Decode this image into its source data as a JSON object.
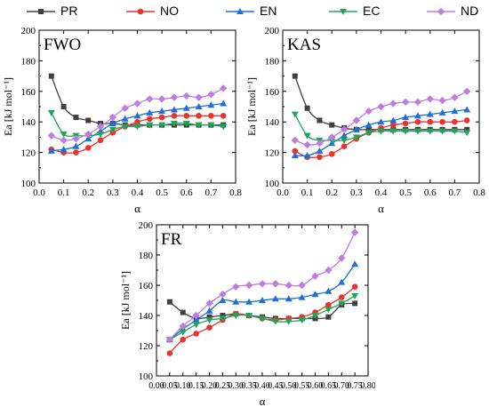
{
  "legend": [
    {
      "name": "PR",
      "color": "#404040",
      "marker": "square"
    },
    {
      "name": "NO",
      "color": "#e8332e",
      "marker": "circle"
    },
    {
      "name": "EN",
      "color": "#1f6fd6",
      "marker": "triangle-up"
    },
    {
      "name": "EC",
      "color": "#1ea55a",
      "marker": "triangle-down"
    },
    {
      "name": "ND",
      "color": "#c07ce0",
      "marker": "diamond"
    }
  ],
  "chart_data": [
    {
      "type": "line",
      "title": "FWO",
      "xlabel": "α",
      "ylabel": "Ea [kJ mol⁻¹]",
      "xlim": [
        0,
        0.8
      ],
      "ylim": [
        100,
        200
      ],
      "xticks": [
        "0.0",
        "0.1",
        "0.2",
        "0.3",
        "0.4",
        "0.5",
        "0.6",
        "0.7",
        "0.8"
      ],
      "yticks": [
        "100",
        "120",
        "140",
        "160",
        "180",
        "200"
      ],
      "grid": false,
      "x": [
        0.05,
        0.1,
        0.15,
        0.2,
        0.25,
        0.3,
        0.35,
        0.4,
        0.45,
        0.5,
        0.55,
        0.6,
        0.65,
        0.7,
        0.75
      ],
      "series": [
        {
          "name": "PR",
          "values": [
            170,
            150,
            143,
            141,
            139,
            139,
            138,
            138,
            138,
            138,
            138,
            138,
            138,
            138,
            138
          ]
        },
        {
          "name": "NO",
          "values": [
            122,
            120,
            120,
            123,
            128,
            133,
            137,
            140,
            142,
            143,
            144,
            144,
            144,
            144,
            144
          ]
        },
        {
          "name": "EN",
          "values": [
            121,
            122,
            124,
            129,
            134,
            139,
            142,
            144,
            146,
            147,
            148,
            149,
            150,
            151,
            152
          ]
        },
        {
          "name": "EC",
          "values": [
            146,
            132,
            131,
            131,
            132,
            135,
            137,
            137,
            138,
            138,
            139,
            139,
            138,
            138,
            137
          ]
        },
        {
          "name": "ND",
          "values": [
            131,
            128,
            129,
            132,
            137,
            143,
            149,
            152,
            155,
            155,
            156,
            157,
            156,
            158,
            162
          ]
        }
      ]
    },
    {
      "type": "line",
      "title": "KAS",
      "xlabel": "α",
      "ylabel": "Ea [kJ mol⁻¹]",
      "xlim": [
        0,
        0.8
      ],
      "ylim": [
        100,
        200
      ],
      "xticks": [
        "0.0",
        "0.1",
        "0.2",
        "0.3",
        "0.4",
        "0.5",
        "0.6",
        "0.7",
        "0.8"
      ],
      "yticks": [
        "100",
        "120",
        "140",
        "160",
        "180",
        "200"
      ],
      "grid": false,
      "x": [
        0.05,
        0.1,
        0.15,
        0.2,
        0.25,
        0.3,
        0.35,
        0.4,
        0.45,
        0.5,
        0.55,
        0.6,
        0.65,
        0.7,
        0.75
      ],
      "series": [
        {
          "name": "PR",
          "values": [
            170,
            149,
            141,
            138,
            136,
            135,
            135,
            135,
            135,
            135,
            135,
            135,
            135,
            135,
            135
          ]
        },
        {
          "name": "NO",
          "values": [
            121,
            117,
            117,
            119,
            124,
            129,
            133,
            136,
            138,
            139,
            140,
            140,
            140,
            140,
            141
          ]
        },
        {
          "name": "EN",
          "values": [
            118,
            118,
            121,
            126,
            131,
            135,
            138,
            140,
            141,
            143,
            144,
            145,
            146,
            147,
            148
          ]
        },
        {
          "name": "EC",
          "values": [
            145,
            131,
            128,
            128,
            128,
            130,
            133,
            134,
            134,
            134,
            134,
            134,
            134,
            134,
            133
          ]
        },
        {
          "name": "ND",
          "values": [
            128,
            125,
            126,
            130,
            135,
            141,
            147,
            150,
            152,
            153,
            153,
            155,
            154,
            156,
            160
          ]
        }
      ]
    },
    {
      "type": "line",
      "title": "FR",
      "xlabel": "α",
      "ylabel": "Ea [kJ mol⁻¹]",
      "xlim": [
        0,
        0.8
      ],
      "ylim": [
        100,
        200
      ],
      "xticks": [
        "0.00",
        "0.05",
        "0.10",
        "0.15",
        "0.20",
        "0.25",
        "0.30",
        "0.35",
        "0.40",
        "0.45",
        "0.50",
        "0.55",
        "0.60",
        "0.65",
        "0.70",
        "0.75",
        "0.80"
      ],
      "yticks": [
        "100",
        "120",
        "140",
        "160",
        "180",
        "200"
      ],
      "grid": false,
      "x": [
        0.05,
        0.1,
        0.15,
        0.2,
        0.25,
        0.3,
        0.35,
        0.4,
        0.45,
        0.5,
        0.55,
        0.6,
        0.65,
        0.7,
        0.75
      ],
      "series": [
        {
          "name": "PR",
          "values": [
            149,
            142,
            138,
            139,
            140,
            141,
            140,
            139,
            138,
            138,
            138,
            138,
            139,
            147,
            148
          ]
        },
        {
          "name": "NO",
          "values": [
            115,
            124,
            128,
            132,
            137,
            141,
            140,
            138,
            137,
            138,
            139,
            142,
            147,
            152,
            159
          ]
        },
        {
          "name": "EN",
          "values": [
            124,
            131,
            137,
            143,
            150,
            149,
            149,
            150,
            151,
            151,
            152,
            154,
            156,
            162,
            174
          ]
        },
        {
          "name": "EC",
          "values": [
            124,
            129,
            134,
            137,
            138,
            140,
            140,
            138,
            136,
            136,
            137,
            140,
            144,
            148,
            153
          ]
        },
        {
          "name": "ND",
          "values": [
            124,
            133,
            140,
            148,
            154,
            159,
            160,
            161,
            161,
            160,
            160,
            166,
            170,
            178,
            195
          ]
        }
      ]
    }
  ]
}
